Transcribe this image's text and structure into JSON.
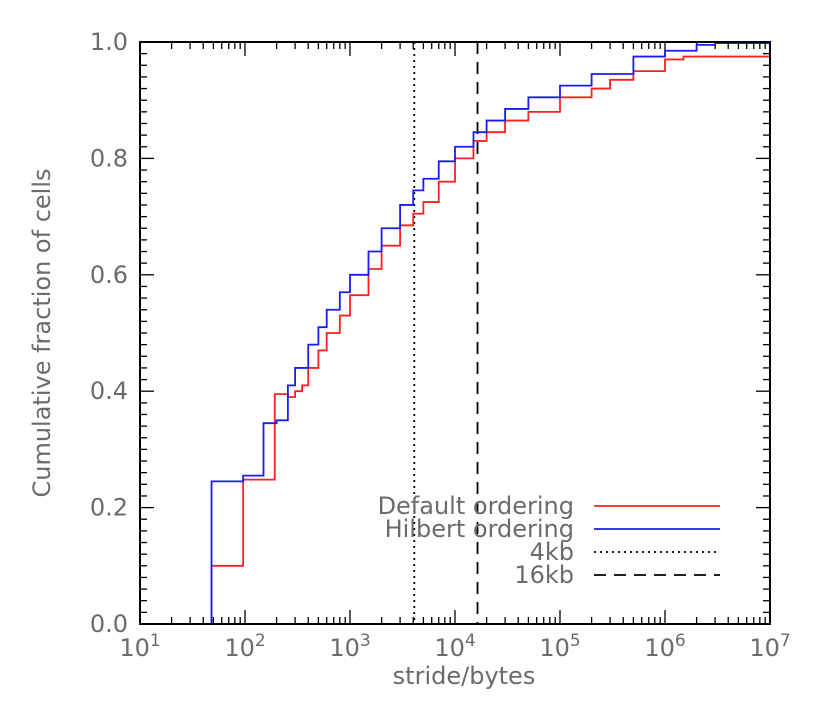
{
  "chart_data": {
    "type": "line",
    "step": true,
    "title": "",
    "xlabel": "stride/bytes",
    "ylabel": "Cumulative fraction of cells",
    "xscale": "log",
    "xlim": [
      10,
      10000000
    ],
    "ylim": [
      0.0,
      1.0
    ],
    "x_ticks": [
      {
        "value": 10,
        "base": "10",
        "exp": "1"
      },
      {
        "value": 100,
        "base": "10",
        "exp": "2"
      },
      {
        "value": 1000,
        "base": "10",
        "exp": "3"
      },
      {
        "value": 10000,
        "base": "10",
        "exp": "4"
      },
      {
        "value": 100000,
        "base": "10",
        "exp": "5"
      },
      {
        "value": 1000000,
        "base": "10",
        "exp": "6"
      },
      {
        "value": 10000000,
        "base": "10",
        "exp": "7"
      }
    ],
    "y_ticks": [
      {
        "value": 0.0,
        "label": "0.0"
      },
      {
        "value": 0.2,
        "label": "0.2"
      },
      {
        "value": 0.4,
        "label": "0.4"
      },
      {
        "value": 0.6,
        "label": "0.6"
      },
      {
        "value": 0.8,
        "label": "0.8"
      },
      {
        "value": 1.0,
        "label": "1.0"
      }
    ],
    "grid": false,
    "legend_position": "bottom-right",
    "series": [
      {
        "name": "Default ordering",
        "color": "#ff2020",
        "style": "solid",
        "x": [
          48,
          48,
          96,
          192,
          256,
          300,
          350,
          400,
          500,
          600,
          800,
          1000,
          1500,
          2000,
          3000,
          4000,
          5000,
          7000,
          10000,
          15000,
          20000,
          30000,
          50000,
          100000,
          200000,
          300000,
          500000,
          1000000,
          1500000,
          10000000
        ],
        "y": [
          0.0,
          0.1,
          0.248,
          0.395,
          0.39,
          0.4,
          0.41,
          0.44,
          0.47,
          0.5,
          0.53,
          0.565,
          0.61,
          0.65,
          0.685,
          0.705,
          0.725,
          0.76,
          0.8,
          0.83,
          0.845,
          0.865,
          0.88,
          0.905,
          0.92,
          0.935,
          0.95,
          0.97,
          0.975,
          0.975
        ]
      },
      {
        "name": "Hilbert ordering",
        "color": "#1c1cf0",
        "style": "solid",
        "x": [
          48,
          48,
          96,
          150,
          200,
          256,
          300,
          400,
          500,
          600,
          800,
          1000,
          1500,
          2000,
          3000,
          4000,
          5000,
          7000,
          10000,
          15000,
          20000,
          30000,
          50000,
          100000,
          200000,
          500000,
          1000000,
          2000000,
          3000000,
          10000000
        ],
        "y": [
          0.0,
          0.245,
          0.255,
          0.345,
          0.35,
          0.41,
          0.44,
          0.48,
          0.51,
          0.54,
          0.57,
          0.6,
          0.64,
          0.68,
          0.72,
          0.745,
          0.765,
          0.795,
          0.82,
          0.845,
          0.865,
          0.885,
          0.905,
          0.925,
          0.945,
          0.975,
          0.985,
          0.995,
          0.998,
          1.0
        ]
      }
    ],
    "vlines": [
      {
        "name": "4kb",
        "x": 4096,
        "style": "dotted",
        "color": "#000000"
      },
      {
        "name": "16kb",
        "x": 16384,
        "style": "dashed",
        "color": "#000000"
      }
    ]
  }
}
